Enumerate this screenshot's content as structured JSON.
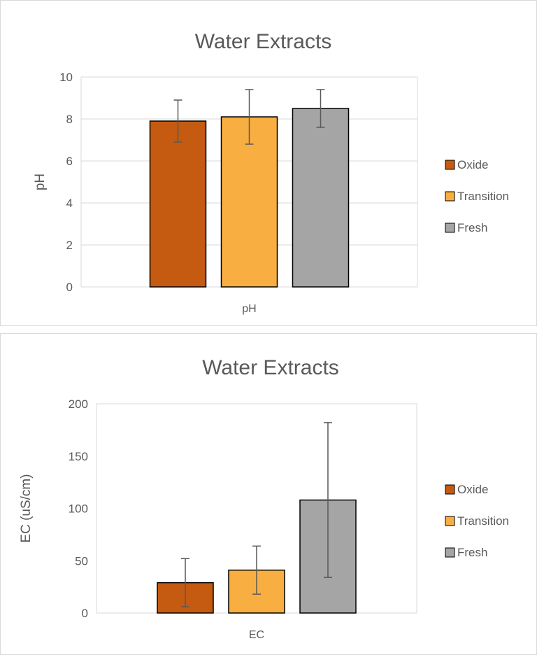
{
  "colors": {
    "Oxide": "#c55a11",
    "Transition": "#f9ae41",
    "Fresh": "#a5a5a5",
    "gridline": "#d9d9d9",
    "errorbar": "#595959",
    "text": "#595959"
  },
  "chart_data": [
    {
      "type": "bar",
      "title": "Water Extracts",
      "ylabel": "pH",
      "xlabel": "",
      "categories": [
        "pH"
      ],
      "ylim": [
        0,
        10
      ],
      "yticks": [
        0,
        2,
        4,
        6,
        8,
        10
      ],
      "grid": true,
      "legend": "right",
      "series": [
        {
          "name": "Oxide",
          "values": [
            7.9
          ],
          "error": [
            1.0
          ]
        },
        {
          "name": "Transition",
          "values": [
            8.1
          ],
          "error": [
            1.3
          ]
        },
        {
          "name": "Fresh",
          "values": [
            8.5
          ],
          "error": [
            0.9
          ]
        }
      ]
    },
    {
      "type": "bar",
      "title": "Water Extracts",
      "ylabel": "EC (uS/cm)",
      "xlabel": "",
      "categories": [
        "EC"
      ],
      "ylim": [
        0,
        200
      ],
      "yticks": [
        0,
        50,
        100,
        150,
        200
      ],
      "grid": false,
      "legend": "right",
      "series": [
        {
          "name": "Oxide",
          "values": [
            29
          ],
          "error": [
            23
          ]
        },
        {
          "name": "Transition",
          "values": [
            41
          ],
          "error": [
            23
          ]
        },
        {
          "name": "Fresh",
          "values": [
            108
          ],
          "error": [
            74
          ]
        }
      ]
    }
  ]
}
